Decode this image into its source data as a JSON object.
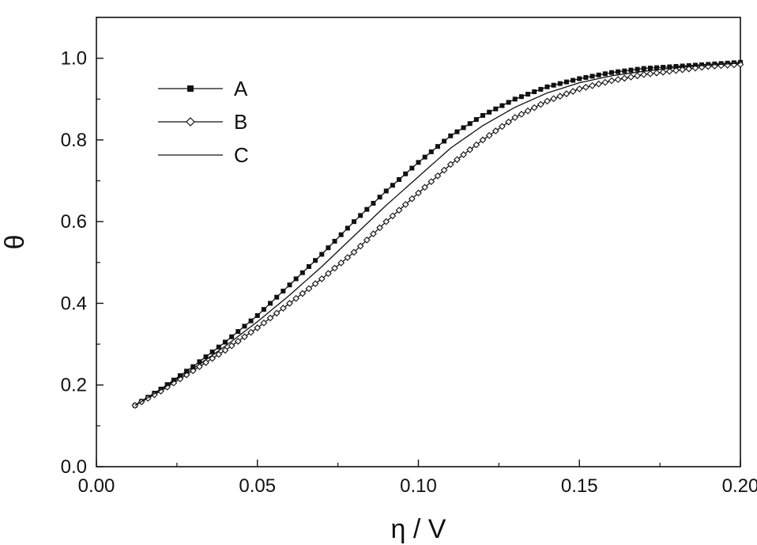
{
  "chart_data": {
    "type": "line",
    "title": "",
    "xlabel": "η / V",
    "ylabel": "θ",
    "xlim": [
      0.0,
      0.2
    ],
    "ylim": [
      0.0,
      1.1
    ],
    "x_ticks": [
      "0.00",
      "0.05",
      "0.10",
      "0.15",
      "0.20"
    ],
    "y_ticks": [
      "0.0",
      "0.2",
      "0.4",
      "0.6",
      "0.8",
      "1.0"
    ],
    "grid": false,
    "legend_position": "top-left",
    "x": [
      0.012,
      0.02,
      0.03,
      0.04,
      0.05,
      0.06,
      0.07,
      0.08,
      0.09,
      0.1,
      0.11,
      0.12,
      0.13,
      0.14,
      0.15,
      0.16,
      0.17,
      0.18,
      0.19,
      0.2
    ],
    "series": [
      {
        "name": "A",
        "marker": "filled-square",
        "values": [
          0.15,
          0.19,
          0.245,
          0.305,
          0.37,
          0.445,
          0.52,
          0.6,
          0.675,
          0.745,
          0.81,
          0.86,
          0.9,
          0.93,
          0.95,
          0.965,
          0.975,
          0.98,
          0.985,
          0.99
        ]
      },
      {
        "name": "B",
        "marker": "open-diamond",
        "values": [
          0.15,
          0.185,
          0.235,
          0.285,
          0.34,
          0.4,
          0.46,
          0.525,
          0.6,
          0.67,
          0.74,
          0.8,
          0.855,
          0.895,
          0.925,
          0.945,
          0.96,
          0.97,
          0.98,
          0.985
        ]
      },
      {
        "name": "C",
        "marker": "none",
        "values": [
          0.15,
          0.188,
          0.24,
          0.295,
          0.355,
          0.42,
          0.49,
          0.565,
          0.64,
          0.71,
          0.78,
          0.835,
          0.88,
          0.915,
          0.94,
          0.957,
          0.968,
          0.977,
          0.983,
          0.988
        ]
      }
    ],
    "colors": {
      "axis": "#111111",
      "series": "#111111"
    }
  }
}
